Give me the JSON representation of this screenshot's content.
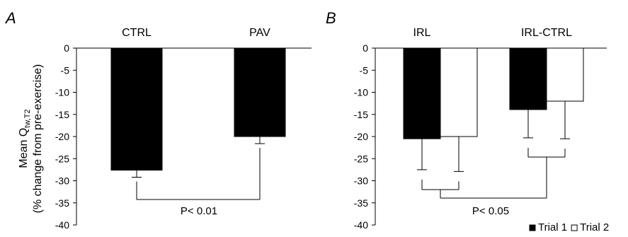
{
  "chart_data": [
    {
      "type": "bar",
      "panel": "A",
      "categories": [
        "CTRL",
        "PAV"
      ],
      "series": [
        {
          "values": [
            -27.6,
            -20.0
          ],
          "errors": [
            1.6,
            1.6
          ]
        }
      ],
      "ylabel_line1": "Mean Q",
      "ylabel_sub": "tw,T2",
      "ylabel_line2": "(% change from pre-exercise)",
      "ylim": [
        -40,
        0
      ],
      "yticks": [
        0,
        -5,
        -10,
        -15,
        -20,
        -25,
        -30,
        -35,
        -40
      ],
      "grid": false,
      "annotation": "P< 0.01"
    },
    {
      "type": "bar",
      "panel": "B",
      "categories": [
        "IRL",
        "IRL-CTRL"
      ],
      "series": [
        {
          "name": "Trial 1",
          "color": "#000000",
          "values": [
            -20.5,
            -13.9
          ],
          "errors": [
            7.0,
            6.4
          ]
        },
        {
          "name": "Trial 2",
          "color": "#ffffff",
          "values": [
            -20.0,
            -12.0
          ],
          "errors": [
            7.9,
            8.5
          ]
        }
      ],
      "ylim": [
        -40,
        0
      ],
      "yticks": [
        0,
        -5,
        -10,
        -15,
        -20,
        -25,
        -30,
        -35,
        -40
      ],
      "grid": false,
      "annotation": "P< 0.05",
      "legend_position": "bottom-right"
    }
  ]
}
